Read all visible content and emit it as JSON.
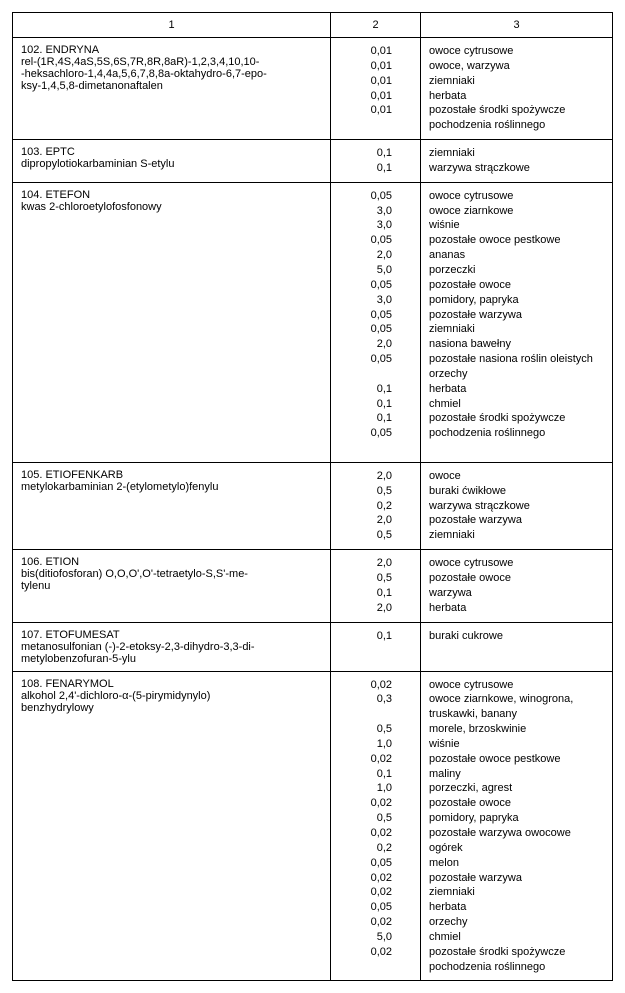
{
  "columns": {
    "h1": "1",
    "h2": "2",
    "h3": "3"
  },
  "entries": [
    {
      "name": "102. ENDRYNA\nrel-(1R,4S,4aS,5S,6S,7R,8R,8aR)-1,2,3,4,10,10-\n-heksachloro-1,4,4a,5,6,7,8,8a-oktahydro-6,7-epo-\nksy-1,4,5,8-dimetanonaftalen",
      "rows": [
        {
          "v": "0,01",
          "d": "owoce cytrusowe"
        },
        {
          "v": "0,01",
          "d": "owoce, warzywa"
        },
        {
          "v": "0,01",
          "d": "ziemniaki"
        },
        {
          "v": "0,01",
          "d": "herbata"
        },
        {
          "v": "0,01",
          "d": "pozostałe środki spożywcze pochodzenia roślinnego"
        }
      ]
    },
    {
      "name": "103. EPTC\ndipropylotiokarbaminian S-etylu",
      "rows": [
        {
          "v": "0,1",
          "d": "ziemniaki"
        },
        {
          "v": "0,1",
          "d": "warzywa strączkowe"
        }
      ]
    },
    {
      "name": "104. ETEFON\nkwas 2-chloroetylofosfonowy",
      "rows": [
        {
          "v": "0,05",
          "d": "owoce cytrusowe"
        },
        {
          "v": "3,0",
          "d": "owoce ziarnkowe"
        },
        {
          "v": "3,0",
          "d": "wiśnie"
        },
        {
          "v": "0,05",
          "d": "pozostałe owoce pestkowe"
        },
        {
          "v": "2,0",
          "d": "ananas"
        },
        {
          "v": "5,0",
          "d": "porzeczki"
        },
        {
          "v": "0,05",
          "d": "pozostałe owoce"
        },
        {
          "v": "3,0",
          "d": "pomidory, papryka"
        },
        {
          "v": "0,05",
          "d": "pozostałe warzywa"
        },
        {
          "v": "0,05",
          "d": "ziemniaki"
        },
        {
          "v": "2,0",
          "d": "nasiona bawełny"
        },
        {
          "v": "0,05",
          "d": "pozostałe nasiona roślin oleistych"
        },
        {
          "v": "0,1",
          "d": "orzechy"
        },
        {
          "v": "0,1",
          "d": "herbata"
        },
        {
          "v": "0,1",
          "d": "chmiel"
        },
        {
          "v": "0,05",
          "d": "pozostałe środki spożywcze pochodzenia roślinnego"
        }
      ]
    },
    {
      "name": "105. ETIOFENKARB\nmetylokarbaminian 2-(etylometylo)fenylu",
      "rows": [
        {
          "v": "2,0",
          "d": "owoce"
        },
        {
          "v": "0,5",
          "d": "buraki ćwikłowe"
        },
        {
          "v": "0,2",
          "d": "warzywa strączkowe"
        },
        {
          "v": "2,0",
          "d": "pozostałe warzywa"
        },
        {
          "v": "0,5",
          "d": "ziemniaki"
        }
      ]
    },
    {
      "name": "106. ETION\nbis(ditiofosforan) O,O,O',O'-tetraetylo-S,S'-me-\ntylenu",
      "rows": [
        {
          "v": "2,0",
          "d": "owoce cytrusowe"
        },
        {
          "v": "0,5",
          "d": "pozostałe owoce"
        },
        {
          "v": "0,1",
          "d": "warzywa"
        },
        {
          "v": "2,0",
          "d": "herbata"
        }
      ]
    },
    {
      "name": "107. ETOFUMESAT\nmetanosulfonian (-)-2-etoksy-2,3-dihydro-3,3-di-\nmetylobenzofuran-5-ylu",
      "rows": [
        {
          "v": "0,1",
          "d": "buraki cukrowe"
        }
      ]
    },
    {
      "name": "108. FENARYMOL\nalkohol 2,4'-dichloro-α-(5-pirymidynylo)\nbenzhydrylowy",
      "rows": [
        {
          "v": "0,02",
          "d": "owoce cytrusowe"
        },
        {
          "v": "0,3",
          "d": "owoce ziarnkowe, winogrona, truskawki, banany"
        },
        {
          "v": "0,5",
          "d": "morele, brzoskwinie"
        },
        {
          "v": "1,0",
          "d": "wiśnie"
        },
        {
          "v": "0,02",
          "d": "pozostałe owoce pestkowe"
        },
        {
          "v": "0,1",
          "d": "maliny"
        },
        {
          "v": "1,0",
          "d": "porzeczki, agrest"
        },
        {
          "v": "0,02",
          "d": "pozostałe owoce"
        },
        {
          "v": "0,5",
          "d": "pomidory, papryka"
        },
        {
          "v": "0,02",
          "d": "pozostałe warzywa owocowe"
        },
        {
          "v": "0,2",
          "d": "ogórek"
        },
        {
          "v": "0,05",
          "d": "melon"
        },
        {
          "v": "0,02",
          "d": "pozostałe warzywa"
        },
        {
          "v": "0,02",
          "d": "ziemniaki"
        },
        {
          "v": "0,05",
          "d": "herbata"
        },
        {
          "v": "0,02",
          "d": "orzechy"
        },
        {
          "v": "5,0",
          "d": "chmiel"
        },
        {
          "v": "0,02",
          "d": "pozostałe środki spożywcze pochodzenia roślinnego"
        }
      ]
    }
  ]
}
